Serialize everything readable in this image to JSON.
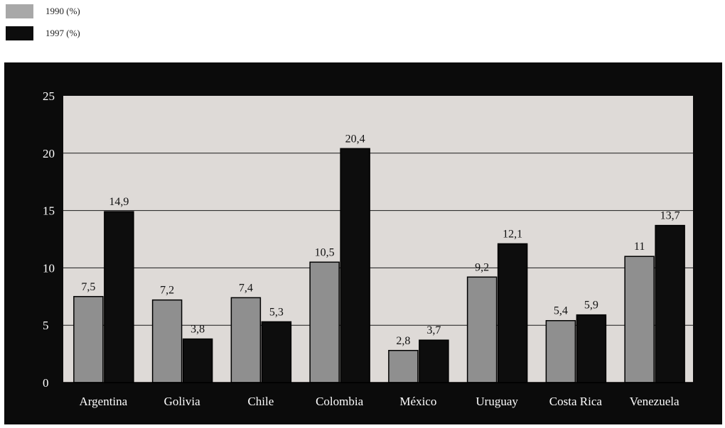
{
  "legend": [
    {
      "label": "1990 (%)",
      "color": "#a8a8a8"
    },
    {
      "label": "1997 (%)",
      "color": "#0d0d0d"
    }
  ],
  "colors": {
    "panel": "#0b0b0b",
    "plot_bg": "#dedad7",
    "bar_1990": "#8f8f8f",
    "bar_1997": "#0d0d0d",
    "grid": "#1a1a1a",
    "text_on_dark": "#ffffff",
    "value_label": "#111111"
  },
  "chart_data": {
    "type": "bar",
    "categories": [
      "Argentina",
      "Golivia",
      "Chile",
      "Colombia",
      "México",
      "Uruguay",
      "Costa Rica",
      "Venezuela"
    ],
    "series": [
      {
        "name": "1990 (%)",
        "values": [
          7.5,
          7.2,
          7.4,
          10.5,
          2.8,
          9.2,
          5.4,
          11
        ],
        "labels": [
          "7,5",
          "7,2",
          "7,4",
          "10,5",
          "2,8",
          "9,2",
          "5,4",
          "11"
        ]
      },
      {
        "name": "1997 (%)",
        "values": [
          14.9,
          3.8,
          5.3,
          20.4,
          3.7,
          12.1,
          5.9,
          13.7
        ],
        "labels": [
          "14,9",
          "3,8",
          "5,3",
          "20,4",
          "3,7",
          "12,1",
          "5,9",
          "13,7"
        ]
      }
    ],
    "ylim": [
      0,
      25
    ],
    "yticks": [
      0,
      5,
      10,
      15,
      20,
      25
    ],
    "grid": true,
    "legend_position": "top-left",
    "title": "",
    "xlabel": "",
    "ylabel": ""
  }
}
